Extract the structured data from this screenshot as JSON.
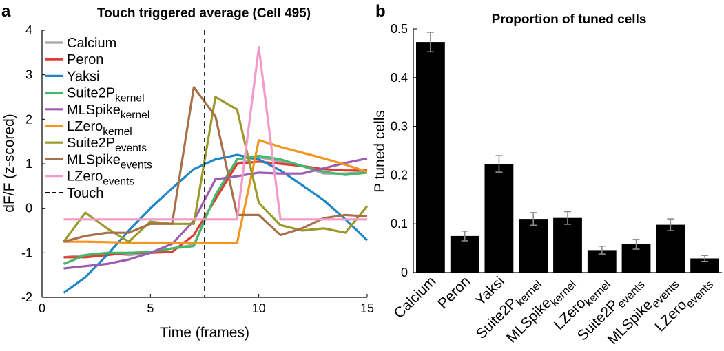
{
  "chart_data": [
    {
      "type": "line",
      "panel": "a",
      "title": "Touch triggered average (Cell 495)",
      "xlabel": "Time (frames)",
      "ylabel": "dF/F (z-scored)",
      "xlim": [
        0,
        15
      ],
      "ylim": [
        -2,
        4
      ],
      "xticks": [
        0,
        5,
        10,
        15
      ],
      "yticks": [
        -2,
        -1,
        0,
        1,
        2,
        3,
        4
      ],
      "x": [
        1,
        2,
        3,
        4,
        5,
        6,
        7,
        8,
        9,
        10,
        11,
        12,
        13,
        14,
        15
      ],
      "vline": {
        "x": 7.5,
        "label": "Touch",
        "style": "dashed"
      },
      "legend_position": "top-left",
      "series": [
        {
          "name": "Calcium",
          "sub": "",
          "color": "#a6a6a6",
          "values": [
            -1.1,
            -1.05,
            -1.0,
            -1.05,
            -1.0,
            -0.9,
            -0.82,
            0.3,
            1.0,
            1.15,
            1.05,
            0.95,
            0.78,
            0.78,
            0.82
          ]
        },
        {
          "name": "Peron",
          "sub": "",
          "color": "#e03c31",
          "values": [
            -1.1,
            -1.1,
            -1.05,
            -1.0,
            -1.0,
            -0.98,
            -0.6,
            0.2,
            1.0,
            1.05,
            1.0,
            0.95,
            0.88,
            0.85,
            0.85
          ]
        },
        {
          "name": "Yaksi",
          "sub": "",
          "color": "#1f85c6",
          "values": [
            -1.9,
            -1.55,
            -1.05,
            -0.5,
            0.0,
            0.45,
            0.88,
            1.1,
            1.2,
            1.1,
            0.85,
            0.52,
            0.18,
            -0.25,
            -0.72
          ]
        },
        {
          "name": "Suite2P",
          "sub": "kernel",
          "color": "#3dbb6b",
          "values": [
            -1.25,
            -1.05,
            -1.0,
            -1.0,
            -0.98,
            -0.9,
            -0.85,
            0.3,
            1.1,
            1.18,
            1.1,
            0.95,
            0.82,
            0.75,
            0.8
          ]
        },
        {
          "name": "MLSpike",
          "sub": "kernel",
          "color": "#9d5bb1",
          "values": [
            -1.35,
            -1.3,
            -1.25,
            -1.15,
            -1.0,
            -0.8,
            -0.28,
            0.65,
            0.72,
            0.8,
            0.78,
            0.78,
            0.9,
            1.02,
            1.12
          ]
        },
        {
          "name": "LZero",
          "sub": "kernel",
          "color": "#f7941d",
          "values": [
            -0.75,
            -0.75,
            -0.76,
            -0.77,
            -0.77,
            -0.77,
            -0.78,
            -0.78,
            -0.78,
            1.53,
            1.38,
            1.25,
            1.12,
            0.98,
            0.82
          ]
        },
        {
          "name": "Suite2P",
          "sub": "events",
          "color": "#9a9a2c",
          "values": [
            -0.75,
            -0.1,
            -0.45,
            -0.75,
            -0.3,
            -0.35,
            -0.35,
            2.5,
            2.22,
            0.12,
            -0.38,
            -0.5,
            -0.45,
            -0.55,
            0.05
          ]
        },
        {
          "name": "MLSpike",
          "sub": "events",
          "color": "#a8704a",
          "values": [
            -0.75,
            -0.62,
            -0.55,
            -0.55,
            -0.35,
            -0.35,
            2.72,
            2.07,
            -0.15,
            -0.15,
            -0.6,
            -0.45,
            -0.22,
            -0.15,
            -0.18
          ]
        },
        {
          "name": "LZero",
          "sub": "events",
          "color": "#f29ac9",
          "values": [
            -0.25,
            -0.25,
            -0.25,
            -0.25,
            -0.25,
            -0.25,
            -0.25,
            -0.25,
            -0.25,
            3.62,
            -0.25,
            -0.25,
            -0.25,
            -0.25,
            -0.25
          ]
        }
      ]
    },
    {
      "type": "bar",
      "panel": "b",
      "title": "Proportion of tuned cells",
      "xlabel": "",
      "ylabel": "P tuned cells",
      "ylim": [
        0,
        0.5
      ],
      "yticks": [
        0,
        0.1,
        0.2,
        0.3,
        0.4,
        0.5
      ],
      "ytick_labels": [
        "0",
        "0.1",
        "0.2",
        "0.3",
        "0.4",
        "0.5"
      ],
      "bar_color": "#000000",
      "errorbar_color": "#8c8c8c",
      "categories": [
        {
          "name": "Calcium",
          "sub": ""
        },
        {
          "name": "Peron",
          "sub": ""
        },
        {
          "name": "Yaksi",
          "sub": ""
        },
        {
          "name": "Suite2P",
          "sub": "kernel"
        },
        {
          "name": "MLSpike",
          "sub": "kernel"
        },
        {
          "name": "LZero",
          "sub": "kernel"
        },
        {
          "name": "Suite2P",
          "sub": "events"
        },
        {
          "name": "MLSpike",
          "sub": "events"
        },
        {
          "name": "LZero",
          "sub": "events"
        }
      ],
      "values": [
        0.473,
        0.075,
        0.223,
        0.11,
        0.112,
        0.046,
        0.058,
        0.098,
        0.029
      ],
      "errors": [
        0.02,
        0.01,
        0.017,
        0.013,
        0.013,
        0.008,
        0.01,
        0.012,
        0.006
      ]
    }
  ]
}
